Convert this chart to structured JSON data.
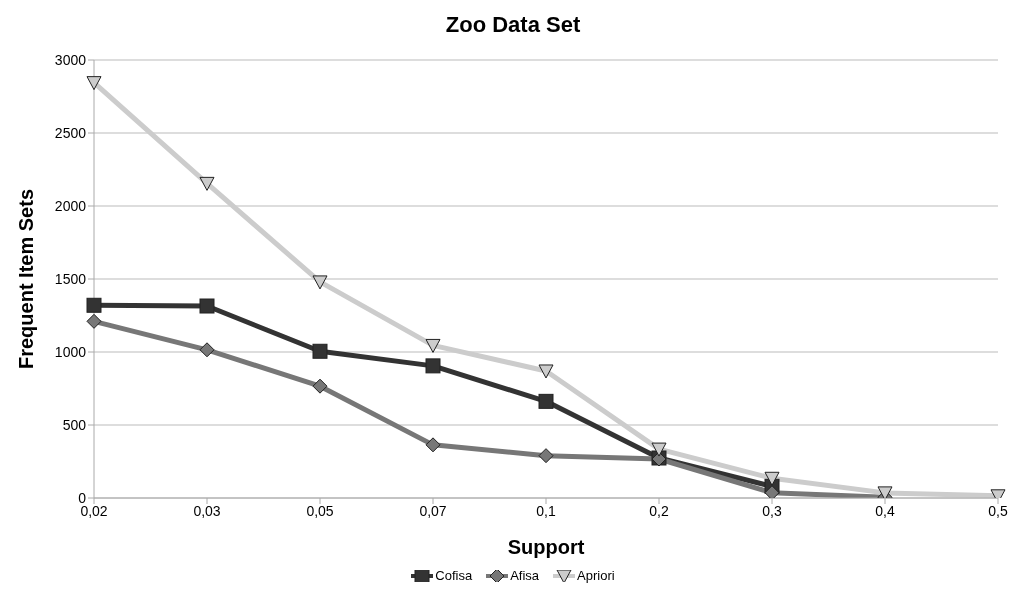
{
  "chart_data": {
    "type": "line",
    "title": "Zoo Data Set",
    "xlabel": "Support",
    "ylabel": "Frequent Item Sets",
    "categories": [
      "0,02",
      "0,03",
      "0,05",
      "0,07",
      "0,1",
      "0,2",
      "0,3",
      "0,4",
      "0,5"
    ],
    "series": [
      {
        "name": "Cofisa",
        "color": "#333333",
        "marker": "square",
        "values": [
          1320,
          1315,
          1005,
          905,
          662,
          274,
          80,
          null,
          null
        ]
      },
      {
        "name": "Afisa",
        "color": "#777777",
        "marker": "diamond",
        "values": [
          1210,
          1015,
          766,
          364,
          290,
          267,
          36,
          5,
          null
        ]
      },
      {
        "name": "Apriori",
        "color": "#cccccc",
        "marker": "triangle",
        "values": [
          2845,
          2155,
          1480,
          1045,
          870,
          335,
          135,
          35,
          15
        ]
      }
    ],
    "ylim": [
      0,
      3000
    ],
    "yticks": [
      0,
      500,
      1000,
      1500,
      2000,
      2500,
      3000
    ],
    "grid": "y",
    "legend": "bottom",
    "line_style": "solid"
  }
}
